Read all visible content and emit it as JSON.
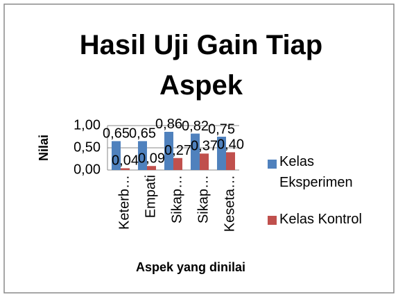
{
  "chart_data": {
    "type": "bar",
    "title": "Hasil Uji Gain Tiap Aspek",
    "xlabel": "Aspek yang dinilai",
    "ylabel": "Nilai",
    "categories": [
      "Keterb…",
      "Empati",
      "Sikap…",
      "Sikap…",
      "Keseta…"
    ],
    "series": [
      {
        "name": "Kelas Eksperimen",
        "color": "#4f81bd",
        "values": [
          0.65,
          0.65,
          0.86,
          0.82,
          0.75
        ],
        "value_labels": [
          "0,65",
          "0,65",
          "0,86",
          "0,82",
          "0,75"
        ]
      },
      {
        "name": "Kelas Kontrol",
        "color": "#c0504d",
        "values": [
          0.04,
          0.09,
          0.27,
          0.37,
          0.4
        ],
        "value_labels": [
          "0,04",
          "0,09",
          "0,27",
          "0,37",
          "0,40"
        ]
      }
    ],
    "ylim": [
      0,
      1
    ],
    "yticks": [
      {
        "value": 0,
        "label": "0,00"
      },
      {
        "value": 0.5,
        "label": "0,50"
      },
      {
        "value": 1,
        "label": "1,00"
      }
    ],
    "grid": true,
    "legend": "right"
  }
}
